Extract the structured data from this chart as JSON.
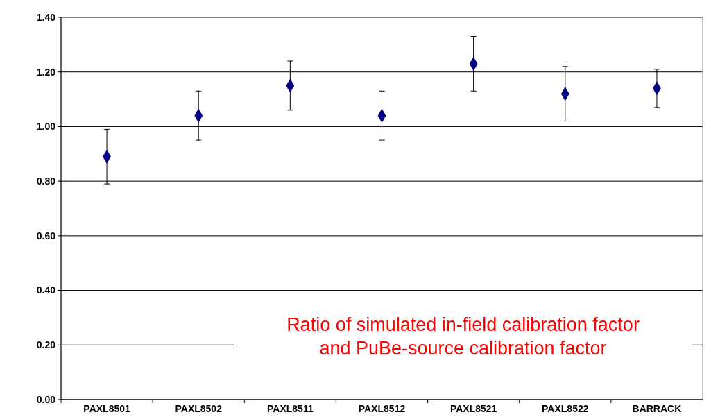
{
  "chart_data": {
    "type": "scatter",
    "categories": [
      "PAXL8501",
      "PAXL8502",
      "PAXL8511",
      "PAXL8512",
      "PAXL8521",
      "PAXL8522",
      "BARRACK"
    ],
    "series": [
      {
        "color": "#000080",
        "values": [
          0.89,
          1.04,
          1.15,
          1.04,
          1.23,
          1.12,
          1.14
        ],
        "errors": [
          [
            0.79,
            0.99
          ],
          [
            0.95,
            1.13
          ],
          [
            1.06,
            1.24
          ],
          [
            0.95,
            1.13
          ],
          [
            1.13,
            1.33
          ],
          [
            1.02,
            1.22
          ],
          [
            1.07,
            1.21
          ]
        ]
      }
    ],
    "ylim": [
      0,
      1.4
    ],
    "yticks": [
      {
        "value": 0,
        "label": "0.00"
      },
      {
        "value": 0.2,
        "label": "0.20"
      },
      {
        "value": 0.4,
        "label": "0.40"
      },
      {
        "value": 0.6,
        "label": "0.60"
      },
      {
        "value": 0.8,
        "label": "0.80"
      },
      {
        "value": 1.0,
        "label": "1.00"
      },
      {
        "value": 1.2,
        "label": "1.20"
      },
      {
        "value": 1.4,
        "label": "1.40"
      }
    ],
    "grid": "y",
    "marker": "diamond",
    "annotations": [
      "Ratio of simulated in-field calibration factor\nand PuBe-source calibration factor"
    ]
  }
}
